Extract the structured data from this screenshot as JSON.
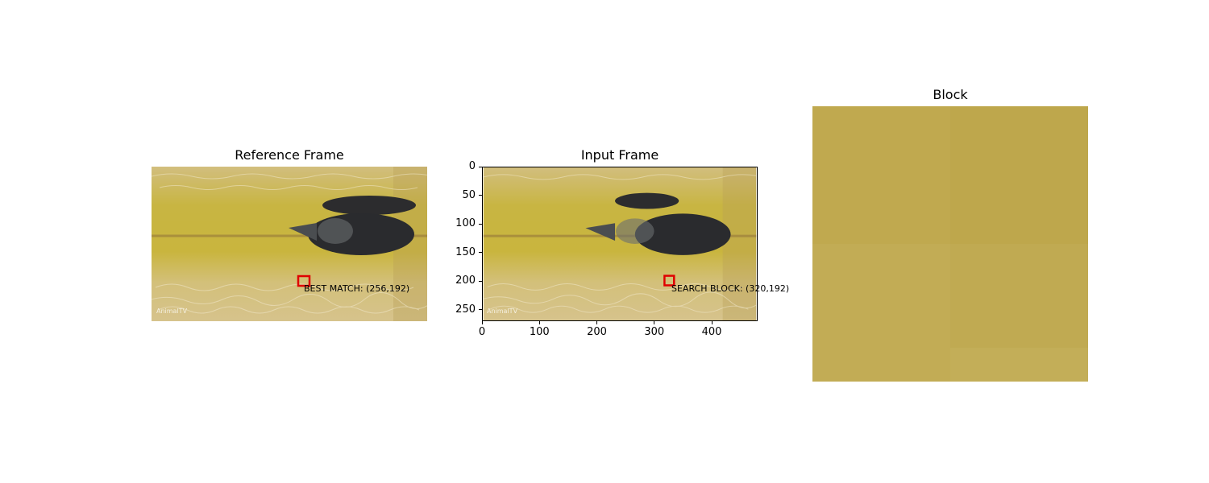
{
  "panels": {
    "reference": {
      "title": "Reference Frame",
      "annotation": "BEST MATCH: (256,192)",
      "watermark": "AnimalTV"
    },
    "input": {
      "title": "Input Frame",
      "annotation": "SEARCH BLOCK: (320,192)",
      "watermark": "AnimalTV"
    },
    "block": {
      "title": "Block"
    }
  },
  "colors": {
    "water": "#c9b548",
    "sand": "#d6c27f",
    "fish": "#2a2b2e",
    "marker": "#e00000",
    "block_fill": "#bfa84e"
  },
  "chart_data": [
    {
      "type": "image",
      "title": "Reference Frame",
      "annotations": [
        {
          "text": "BEST MATCH: (256,192)",
          "x": 256,
          "y": 192
        }
      ],
      "marker": {
        "x": 256,
        "y": 192,
        "size": 16
      }
    },
    {
      "type": "image",
      "title": "Input Frame",
      "xlim": [
        0,
        480
      ],
      "ylim": [
        270,
        0
      ],
      "xticks": [
        0,
        100,
        200,
        300,
        400
      ],
      "yticks": [
        0,
        50,
        100,
        150,
        200,
        250
      ],
      "annotations": [
        {
          "text": "SEARCH BLOCK: (320,192)",
          "x": 320,
          "y": 192
        }
      ],
      "marker": {
        "x": 320,
        "y": 192,
        "size": 16
      }
    },
    {
      "type": "image",
      "title": "Block"
    }
  ]
}
